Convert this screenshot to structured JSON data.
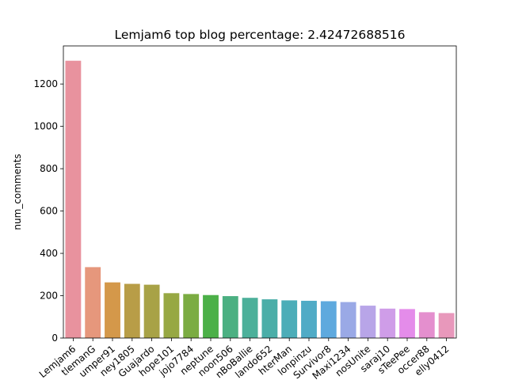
{
  "chart_data": {
    "type": "bar",
    "title": "Lemjam6   top blog percentage:    2.42472688516",
    "xlabel": "",
    "ylabel": "num_comments",
    "ylim": [
      0,
      1380
    ],
    "yticks": [
      0,
      200,
      400,
      600,
      800,
      1000,
      1200
    ],
    "grid": false,
    "categories": [
      "Lemjam6",
      "tlemanG",
      "umper91",
      "ney1805",
      "Guajardo",
      "hope101",
      "jojo7784",
      "neptune",
      "noon506",
      "nBoBallie",
      "lando652",
      "hterMan",
      "lonpinzu",
      "Survivor8",
      "Maxi1234",
      "nosUnite",
      "saraj10",
      "sTeePee",
      "occer88",
      "elly0412"
    ],
    "values": [
      1310,
      335,
      263,
      256,
      252,
      212,
      208,
      203,
      198,
      190,
      183,
      178,
      176,
      174,
      170,
      153,
      139,
      137,
      122,
      118
    ],
    "colors": [
      "#e8929e",
      "#e6977c",
      "#d4984a",
      "#b89d47",
      "#a8a246",
      "#97a843",
      "#7bac42",
      "#4cb048",
      "#4bb082",
      "#4cb09a",
      "#4baea8",
      "#4cadb8",
      "#50abc6",
      "#5ea9de",
      "#9aa9e6",
      "#b8a5e8",
      "#cf9de8",
      "#e48cea",
      "#e48fce",
      "#e898bb"
    ]
  }
}
